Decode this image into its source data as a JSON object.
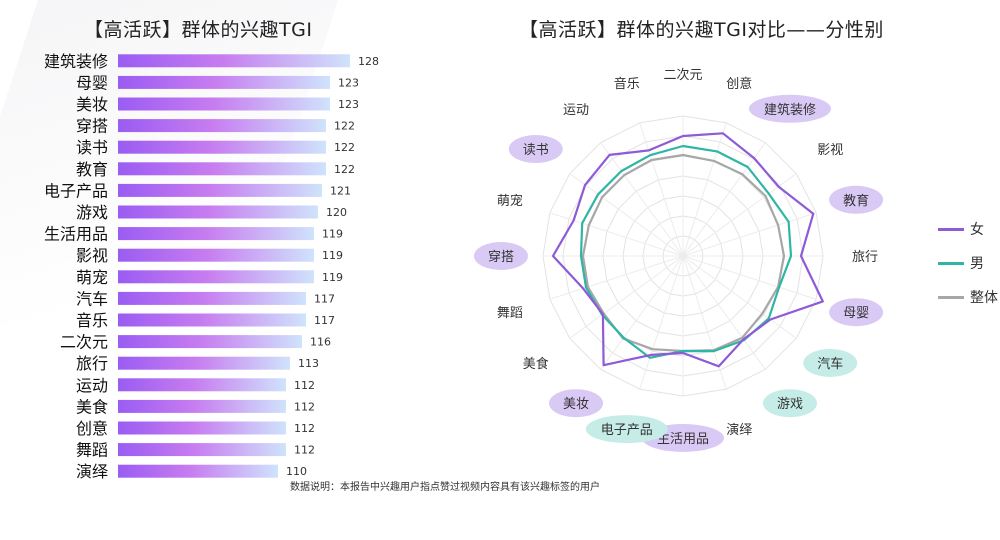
{
  "left_title": "【高活跃】群体的兴趣TGI",
  "right_title": "【高活跃】群体的兴趣TGI对比——分性别",
  "footnote": "数据说明：本报告中兴趣用户指点赞过视频内容具有该兴趣标签的用户",
  "legend": [
    {
      "label": "女",
      "color": "#8e5ad6"
    },
    {
      "label": "男",
      "color": "#2fb5a5"
    },
    {
      "label": "整体",
      "color": "#a7a7a7"
    }
  ],
  "colors": {
    "bar_start": "#9a5cf2",
    "bar_mid": "#c77cf0",
    "bar_end": "#cfe3fb",
    "purple_highlight": "#d9c9f5",
    "teal_highlight": "#c5ece7"
  },
  "chart_data": [
    {
      "type": "bar",
      "orientation": "horizontal",
      "title": "【高活跃】群体的兴趣TGI",
      "categories": [
        "建筑装修",
        "母婴",
        "美妆",
        "穿搭",
        "读书",
        "教育",
        "电子产品",
        "游戏",
        "生活用品",
        "影视",
        "萌宠",
        "汽车",
        "音乐",
        "二次元",
        "旅行",
        "运动",
        "美食",
        "创意",
        "舞蹈",
        "演绎"
      ],
      "values": [
        128,
        123,
        123,
        122,
        122,
        122,
        121,
        120,
        119,
        119,
        119,
        117,
        117,
        116,
        113,
        112,
        112,
        112,
        112,
        110
      ],
      "xlim": [
        0,
        130
      ]
    },
    {
      "type": "radar",
      "title": "【高活跃】群体的兴趣TGI对比——分性别",
      "axes": [
        "二次元",
        "创意",
        "建筑装修",
        "影视",
        "教育",
        "旅行",
        "母婴",
        "汽车",
        "游戏",
        "演绎",
        "生活用品",
        "电子产品",
        "美妆",
        "美食",
        "舞蹈",
        "穿搭",
        "萌宠",
        "读书",
        "运动",
        "音乐"
      ],
      "highlight_axes": {
        "purple": [
          "建筑装修",
          "教育",
          "母婴",
          "美妆",
          "生活用品",
          "读书",
          "穿搭"
        ],
        "teal": [
          "汽车",
          "游戏",
          "电子产品"
        ]
      },
      "rlim": [
        0,
        140
      ],
      "series": [
        {
          "name": "女",
          "values": [
            120,
            129,
            121,
            118,
            137,
            118,
            147,
            108,
            103,
            116,
            97,
            104,
            135,
            99,
            105,
            130,
            115,
            121,
            125,
            111
          ]
        },
        {
          "name": "男",
          "values": [
            110,
            110,
            110,
            106,
            111,
            108,
            101,
            106,
            104,
            100,
            95,
            107,
            101,
            100,
            102,
            102,
            106,
            105,
            105,
            106
          ]
        },
        {
          "name": "整体",
          "values": [
            101,
            100,
            101,
            102,
            100,
            101,
            100,
            98,
            101,
            99,
            95,
            98,
            102,
            98,
            100,
            100,
            99,
            100,
            100,
            101
          ]
        }
      ]
    }
  ]
}
